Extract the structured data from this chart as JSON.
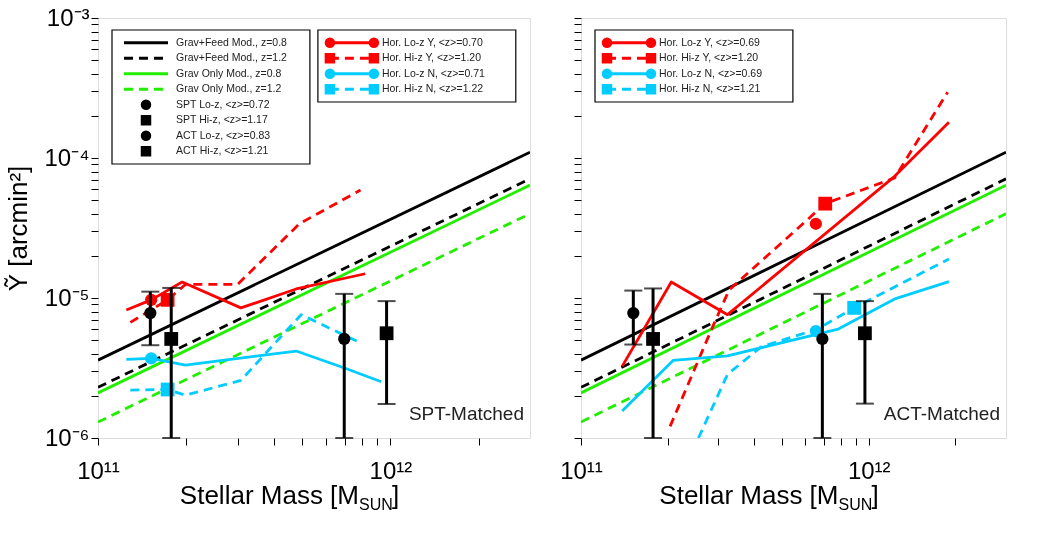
{
  "chart_data": [
    {
      "type": "line",
      "ylabel": "Ỹ [arcmin²]",
      "xlabel": "Stellar Mass [M$_{SUN}$]",
      "log": "xy",
      "grid": false,
      "legend": "top left",
      "xlim": [
        100000000000.0,
        3000000000000.0
      ],
      "ylim": [
        1e-06,
        0.001
      ],
      "xticks": [
        {
          "value": 100000000000.0,
          "label": "10¹¹"
        },
        {
          "value": 200000000000.0,
          "label": null
        },
        {
          "value": 300000000000.0,
          "label": null
        },
        {
          "value": 400000000000.0,
          "label": null
        },
        {
          "value": 500000000000.0,
          "label": null
        },
        {
          "value": 600000000000.0,
          "label": null
        },
        {
          "value": 700000000000.0,
          "label": null
        },
        {
          "value": 800000000000.0,
          "label": null
        },
        {
          "value": 900000000000.0,
          "label": null
        },
        {
          "value": 1000000000000.0,
          "label": "10¹²"
        },
        {
          "value": 2000000000000.0,
          "label": null
        }
      ],
      "yticks": [
        {
          "value": 1e-06,
          "label": "10⁻⁶"
        },
        {
          "value": 2e-06,
          "label": null
        },
        {
          "value": 3e-06,
          "label": null
        },
        {
          "value": 4e-06,
          "label": null
        },
        {
          "value": 5e-06,
          "label": null
        },
        {
          "value": 6e-06,
          "label": null
        },
        {
          "value": 7e-06,
          "label": null
        },
        {
          "value": 8e-06,
          "label": null
        },
        {
          "value": 9e-06,
          "label": null
        },
        {
          "value": 1e-05,
          "label": "10⁻⁵"
        },
        {
          "value": 2e-05,
          "label": null
        },
        {
          "value": 3e-05,
          "label": null
        },
        {
          "value": 4e-05,
          "label": null
        },
        {
          "value": 5e-05,
          "label": null
        },
        {
          "value": 6e-05,
          "label": null
        },
        {
          "value": 7e-05,
          "label": null
        },
        {
          "value": 8e-05,
          "label": null
        },
        {
          "value": 9e-05,
          "label": null
        },
        {
          "value": 0.0001,
          "label": "10⁻⁴"
        },
        {
          "value": 0.0002,
          "label": null
        },
        {
          "value": 0.0003,
          "label": null
        },
        {
          "value": 0.0004,
          "label": null
        },
        {
          "value": 0.0005,
          "label": null
        },
        {
          "value": 0.0006,
          "label": null
        },
        {
          "value": 0.0007,
          "label": null
        },
        {
          "value": 0.0008,
          "label": null
        },
        {
          "value": 0.0009,
          "label": null
        },
        {
          "value": 0.001,
          "label": "10⁻³"
        }
      ],
      "annotations": [
        "SPT-Matched"
      ],
      "series": [
        {
          "name": "Grav+Feed Mod., z=0.8",
          "color": "#000000",
          "line_style": "solid",
          "marker": "none",
          "x": [
            100000000000.0,
            3000000000000.0
          ],
          "values": [
            3.6e-06,
            0.00011
          ]
        },
        {
          "name": "Grav+Feed Mod., z=1.2",
          "color": "#000000",
          "line_style": "dashed",
          "marker": "none",
          "x": [
            100000000000.0,
            3000000000000.0
          ],
          "values": [
            2.3e-06,
            7.1e-05
          ]
        },
        {
          "name": "Grav Only Mod., z=0.8",
          "color": "#22ee00",
          "line_style": "solid",
          "marker": "none",
          "x": [
            100000000000.0,
            3000000000000.0
          ],
          "values": [
            2.1e-06,
            6.4e-05
          ]
        },
        {
          "name": "Grav Only Mod., z=1.2",
          "color": "#22ee00",
          "line_style": "dashed",
          "marker": "none",
          "x": [
            100000000000.0,
            3000000000000.0
          ],
          "values": [
            1.3e-06,
            4e-05
          ]
        },
        {
          "name": "Hor. Lo-z Y, <z>=0.70",
          "color": "#ff0000",
          "line_style": "solid",
          "x": [
            125000000000.0,
            152000000000.0,
            194000000000.0,
            308000000000.0,
            476000000000.0,
            820000000000.0
          ],
          "values": [
            8.2e-06,
            9.7e-06,
            1.3e-05,
            8.5e-06,
            1.16e-05,
            1.49e-05
          ]
        },
        {
          "name": "Hor. Hi-z Y, <z>=1.20",
          "color": "#ff0000",
          "line_style": "dashed",
          "x": [
            129000000000.0,
            173000000000.0,
            199000000000.0,
            300000000000.0,
            489000000000.0,
            790000000000.0
          ],
          "values": [
            6.7e-06,
            9.7e-06,
            1.25e-05,
            1.25e-05,
            3.4e-05,
            5.9e-05
          ]
        },
        {
          "name": "Hor. Lo-z N, <z>=0.71",
          "color": "#00ccff",
          "line_style": "solid",
          "x": [
            125000000000.0,
            152000000000.0,
            199000000000.0,
            476000000000.0,
            700000000000.0,
            930000000000.0
          ],
          "values": [
            3.64e-06,
            3.7e-06,
            3.32e-06,
            4.18e-06,
            3.15e-06,
            2.52e-06
          ]
        },
        {
          "name": "Hor. Hi-z N, <z>=1.22",
          "color": "#00ccff",
          "line_style": "dashed",
          "x": [
            129000000000.0,
            173000000000.0,
            199000000000.0,
            308000000000.0,
            495000000000.0,
            790000000000.0
          ],
          "values": [
            2.2e-06,
            2.22e-06,
            2.02e-06,
            2.58e-06,
            7.6e-06,
            4.78e-06
          ]
        },
        {
          "type": "scatter",
          "color": "#ff0000",
          "marker": "circle",
          "x": [
            152000000000.0
          ],
          "values": [
            9.7e-06
          ]
        },
        {
          "type": "scatter",
          "color": "#ff0000",
          "marker": "square",
          "x": [
            173000000000.0
          ],
          "values": [
            9.7e-06
          ]
        },
        {
          "type": "scatter",
          "color": "#00ccff",
          "marker": "circle",
          "x": [
            152000000000.0
          ],
          "values": [
            3.7e-06
          ]
        },
        {
          "type": "scatter",
          "color": "#00ccff",
          "marker": "square",
          "x": [
            173000000000.0
          ],
          "values": [
            2.22e-06
          ]
        },
        {
          "name": "SPT Lo-z, <z>=0.72",
          "type": "scatter",
          "color": "#000000",
          "marker": "circle",
          "x": [
            151000000000.0
          ],
          "values": [
            7.8e-06
          ],
          "errors": [
            [
              4.6e-06,
              1.11e-05
            ]
          ]
        },
        {
          "name": "SPT Hi-z, <z>=1.17",
          "type": "scatter",
          "color": "#000000",
          "marker": "square",
          "x": [
            178000000000.0
          ],
          "values": [
            5.1e-06
          ],
          "errors": [
            [
              1e-06,
              1.18e-05
            ]
          ]
        },
        {
          "name": "ACT Lo-z, <z>=0.83",
          "type": "scatter",
          "color": "#000000",
          "marker": "circle",
          "x": [
            695000000000.0
          ],
          "values": [
            5.1e-06
          ],
          "errors": [
            [
              1e-06,
              1.07e-05
            ]
          ]
        },
        {
          "name": "ACT Hi-z, <z>=1.21",
          "type": "scatter",
          "color": "#000000",
          "marker": "square",
          "x": [
            970000000000.0
          ],
          "values": [
            5.6e-06
          ],
          "errors": [
            [
              1.75e-06,
              9.5e-06
            ]
          ]
        }
      ]
    },
    {
      "type": "line",
      "xlabel": "Stellar Mass [M$_{SUN}$]",
      "log": "xy",
      "grid": false,
      "legend": "top left",
      "tick_labels": "x",
      "xlim": [
        100000000000.0,
        3000000000000.0
      ],
      "ylim": [
        1e-06,
        0.001
      ],
      "xticks": [
        {
          "value": 100000000000.0,
          "label": "10¹¹"
        },
        {
          "value": 200000000000.0,
          "label": null
        },
        {
          "value": 300000000000.0,
          "label": null
        },
        {
          "value": 400000000000.0,
          "label": null
        },
        {
          "value": 500000000000.0,
          "label": null
        },
        {
          "value": 600000000000.0,
          "label": null
        },
        {
          "value": 700000000000.0,
          "label": null
        },
        {
          "value": 800000000000.0,
          "label": null
        },
        {
          "value": 900000000000.0,
          "label": null
        },
        {
          "value": 1000000000000.0,
          "label": "10¹²"
        },
        {
          "value": 2000000000000.0,
          "label": null
        }
      ],
      "yticks": [
        {
          "value": 1e-06,
          "label": null
        },
        {
          "value": 2e-06,
          "label": null
        },
        {
          "value": 3e-06,
          "label": null
        },
        {
          "value": 4e-06,
          "label": null
        },
        {
          "value": 5e-06,
          "label": null
        },
        {
          "value": 6e-06,
          "label": null
        },
        {
          "value": 7e-06,
          "label": null
        },
        {
          "value": 8e-06,
          "label": null
        },
        {
          "value": 9e-06,
          "label": null
        },
        {
          "value": 1e-05,
          "label": null
        },
        {
          "value": 2e-05,
          "label": null
        },
        {
          "value": 3e-05,
          "label": null
        },
        {
          "value": 4e-05,
          "label": null
        },
        {
          "value": 5e-05,
          "label": null
        },
        {
          "value": 6e-05,
          "label": null
        },
        {
          "value": 7e-05,
          "label": null
        },
        {
          "value": 8e-05,
          "label": null
        },
        {
          "value": 9e-05,
          "label": null
        },
        {
          "value": 0.0001,
          "label": null
        },
        {
          "value": 0.0002,
          "label": null
        },
        {
          "value": 0.0003,
          "label": null
        },
        {
          "value": 0.0004,
          "label": null
        },
        {
          "value": 0.0005,
          "label": null
        },
        {
          "value": 0.0006,
          "label": null
        },
        {
          "value": 0.0007,
          "label": null
        },
        {
          "value": 0.0008,
          "label": null
        },
        {
          "value": 0.0009,
          "label": null
        },
        {
          "value": 0.001,
          "label": null
        }
      ],
      "annotations": [
        "ACT-Matched"
      ],
      "series": [
        {
          "color": "#000000",
          "line_style": "solid",
          "x": [
            100000000000.0,
            3000000000000.0
          ],
          "values": [
            3.6e-06,
            0.00011
          ]
        },
        {
          "color": "#000000",
          "line_style": "dashed",
          "x": [
            100000000000.0,
            3000000000000.0
          ],
          "values": [
            2.3e-06,
            7.1e-05
          ]
        },
        {
          "color": "#22ee00",
          "line_style": "solid",
          "x": [
            100000000000.0,
            3000000000000.0
          ],
          "values": [
            2.1e-06,
            6.4e-05
          ]
        },
        {
          "color": "#22ee00",
          "line_style": "dashed",
          "x": [
            100000000000.0,
            3000000000000.0
          ],
          "values": [
            1.3e-06,
            4e-05
          ]
        },
        {
          "name": "Hor. Lo-z Y, <z>=0.69",
          "color": "#ff0000",
          "line_style": "solid",
          "x": [
            139000000000.0,
            206000000000.0,
            323000000000.0,
            1230000000000.0,
            1900000000000.0
          ],
          "values": [
            3.25e-06,
            1.3e-05,
            7.6e-06,
            7.4e-05,
            0.00018
          ]
        },
        {
          "name": "Hor. Hi-z Y, <z>=1.20",
          "color": "#ff0000",
          "line_style": "dashed",
          "x": [
            204000000000.0,
            288000000000.0,
            327000000000.0,
            706000000000.0,
            1230000000000.0,
            1880000000000.0
          ],
          "values": [
            1.21e-06,
            6.35e-06,
            1.14e-05,
            4.72e-05,
            7.2e-05,
            0.000295
          ]
        },
        {
          "name": "Hor. Lo-z N, <z>=0.69",
          "color": "#00ccff",
          "line_style": "solid",
          "x": [
            139000000000.0,
            209000000000.0,
            323000000000.0,
            784000000000.0,
            1240000000000.0,
            1900000000000.0
          ],
          "values": [
            1.56e-06,
            3.58e-06,
            3.86e-06,
            6e-06,
            9.9e-06,
            1.31e-05
          ]
        },
        {
          "name": "Hor. Hi-z N, <z>=1.21",
          "color": "#00ccff",
          "line_style": "dashed",
          "x": [
            256000000000.0,
            323000000000.0,
            424000000000.0,
            664000000000.0,
            890000000000.0,
            1900000000000.0
          ],
          "values": [
            1e-06,
            2.85e-06,
            4.49e-06,
            6e-06,
            8.5e-06,
            1.9e-05
          ]
        },
        {
          "type": "scatter",
          "color": "#ff0000",
          "marker": "circle",
          "x": [
            655000000000.0
          ],
          "values": [
            3.39e-05
          ]
        },
        {
          "type": "scatter",
          "color": "#ff0000",
          "marker": "square",
          "x": [
            706000000000.0
          ],
          "values": [
            4.72e-05
          ]
        },
        {
          "type": "scatter",
          "color": "#00ccff",
          "marker": "circle",
          "x": [
            655000000000.0
          ],
          "values": [
            5.8e-06
          ]
        },
        {
          "type": "scatter",
          "color": "#00ccff",
          "marker": "square",
          "x": [
            890000000000.0
          ],
          "values": [
            8.5e-06
          ]
        },
        {
          "type": "scatter",
          "color": "#000000",
          "marker": "circle",
          "x": [
            152000000000.0
          ],
          "values": [
            7.8e-06
          ],
          "errors": [
            [
              4.65e-06,
              1.13e-05
            ]
          ]
        },
        {
          "type": "scatter",
          "color": "#000000",
          "marker": "square",
          "x": [
            178000000000.0
          ],
          "values": [
            5.1e-06
          ],
          "errors": [
            [
              1e-06,
              1.17e-05
            ]
          ]
        },
        {
          "type": "scatter",
          "color": "#000000",
          "marker": "circle",
          "x": [
            690000000000.0
          ],
          "values": [
            5.1e-06
          ],
          "errors": [
            [
              1e-06,
              1.07e-05
            ]
          ]
        },
        {
          "type": "scatter",
          "color": "#000000",
          "marker": "square",
          "x": [
            970000000000.0
          ],
          "values": [
            5.6e-06
          ],
          "errors": [
            [
              1.76e-06,
              9.5e-06
            ]
          ]
        }
      ]
    }
  ]
}
